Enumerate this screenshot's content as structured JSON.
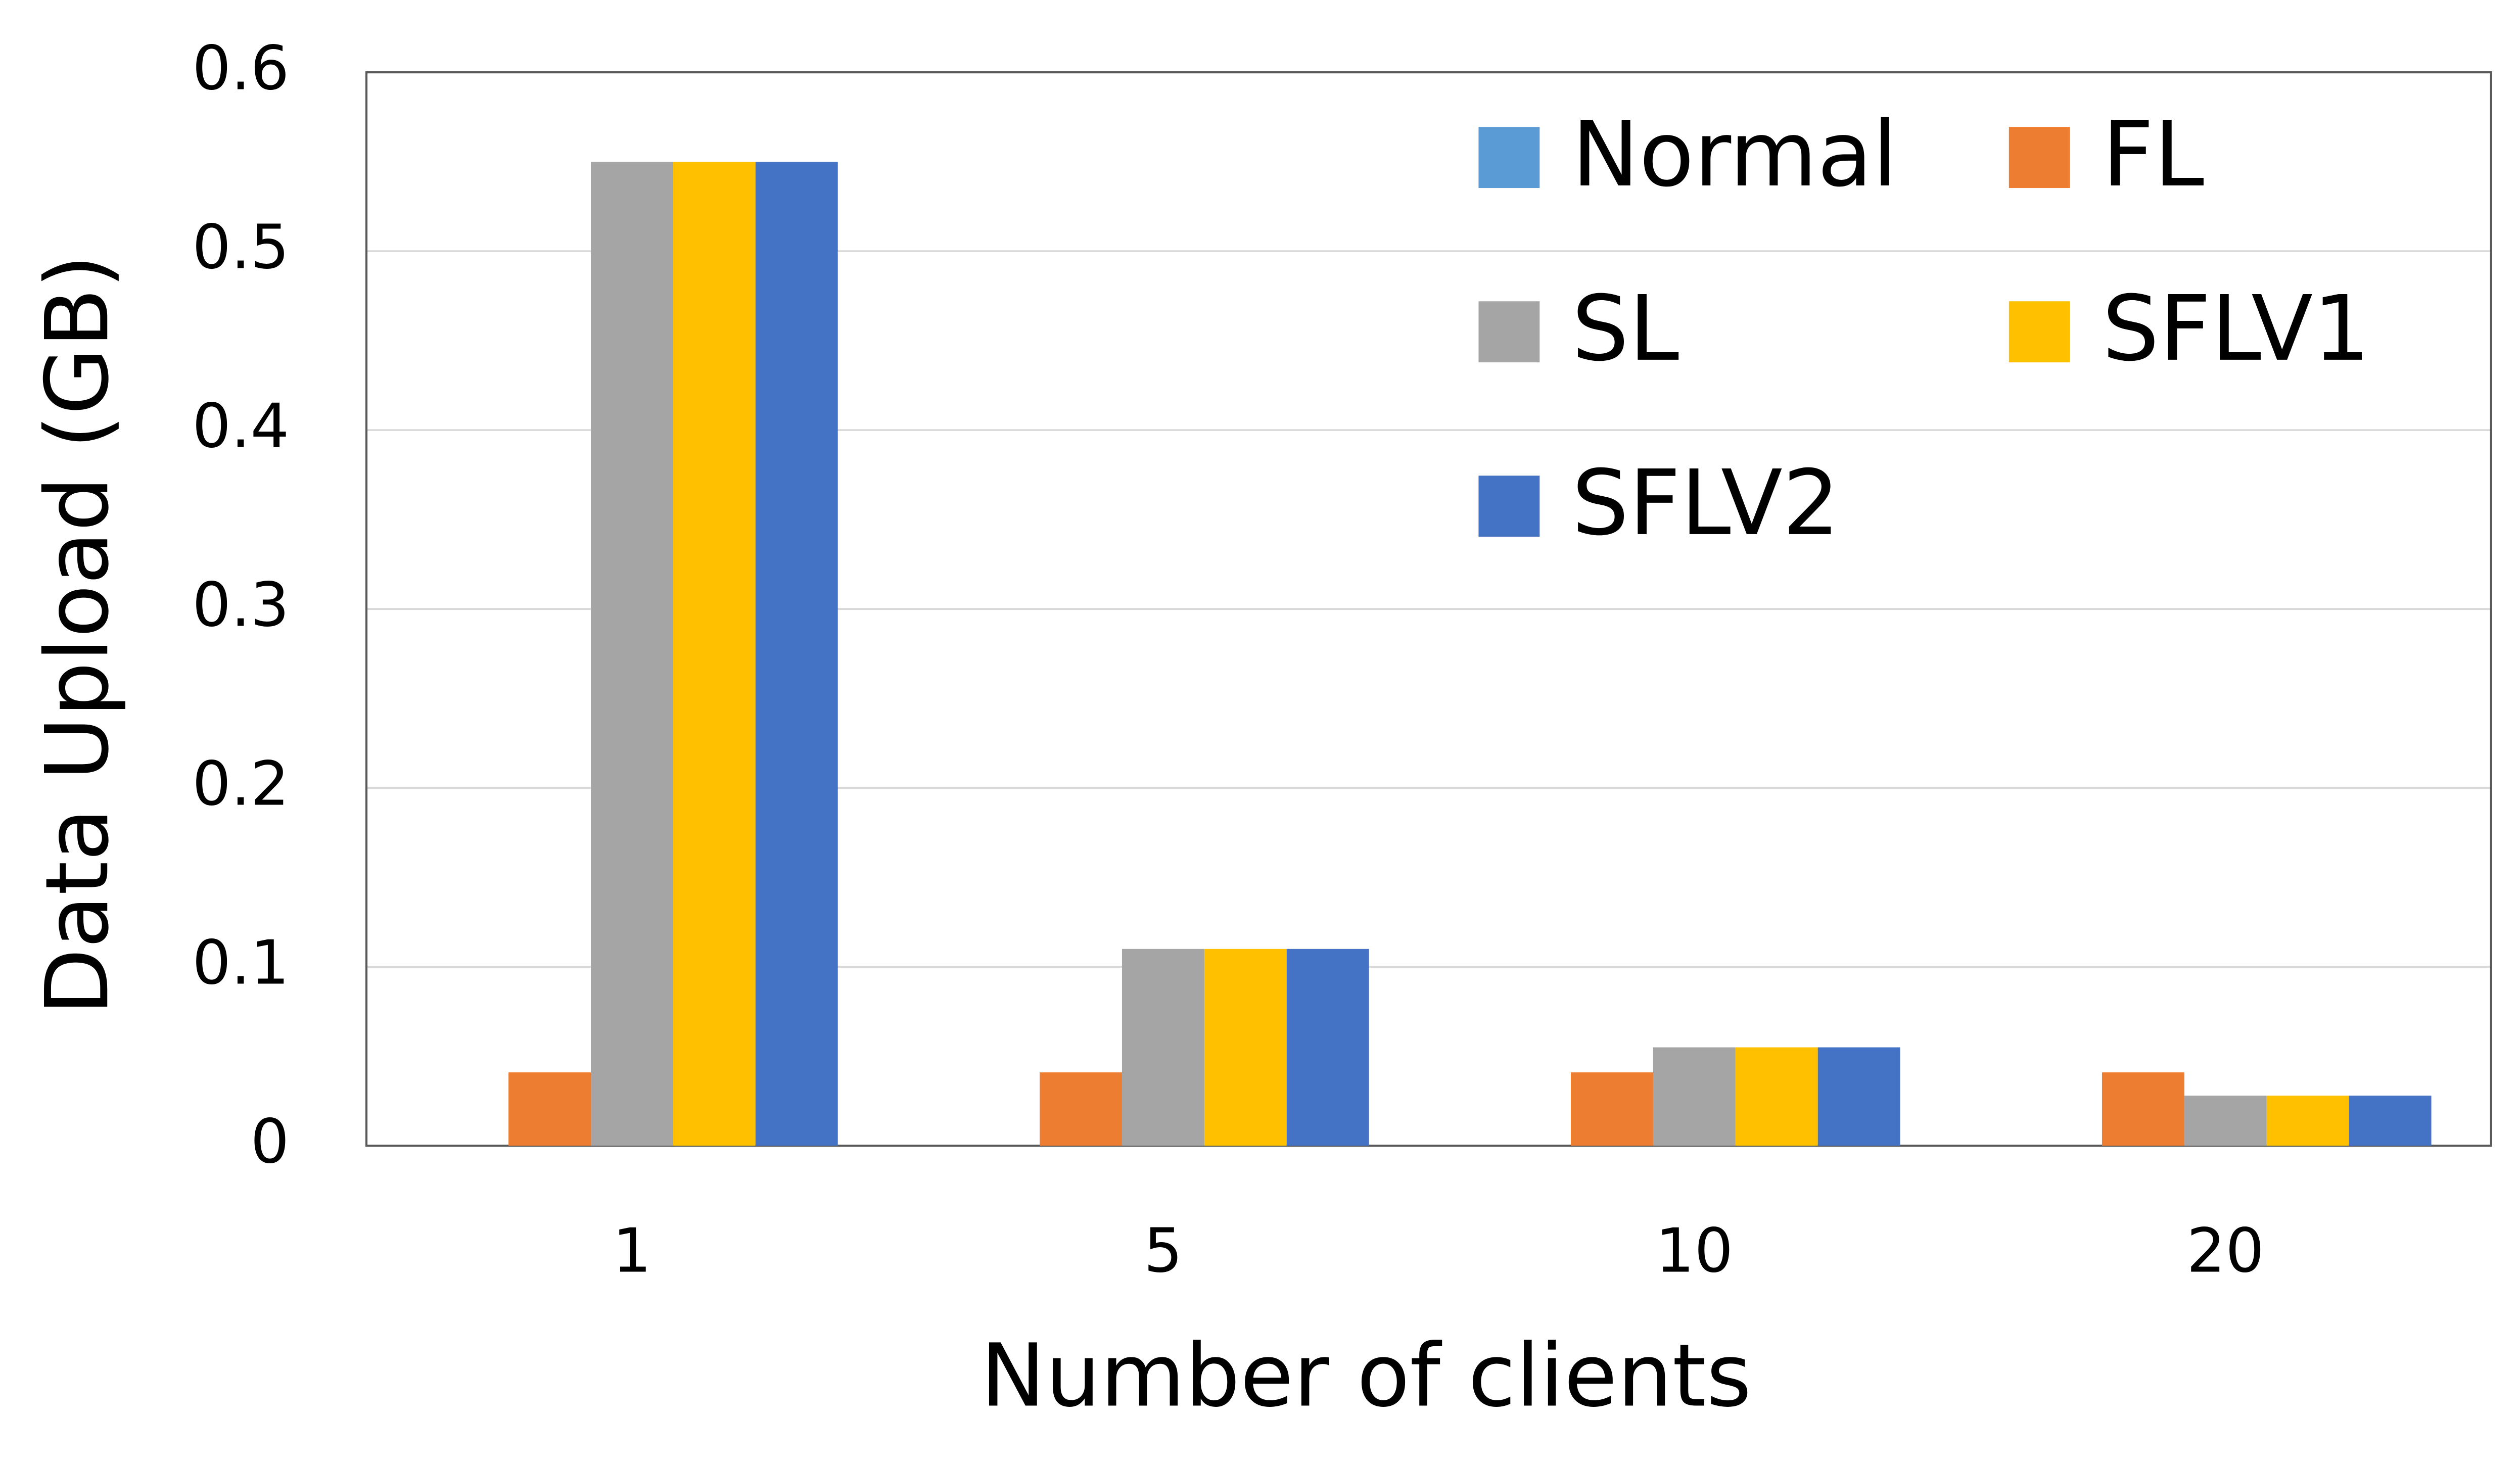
{
  "chart_data": {
    "type": "bar",
    "x_label": "Number of clients",
    "y_label": "Data Upload (GB)",
    "categories": [
      "1",
      "5",
      "10",
      "20"
    ],
    "series": [
      {
        "name": "Normal",
        "color": "#5b9bd5",
        "values": [
          0,
          0,
          0,
          0
        ]
      },
      {
        "name": "FL",
        "color": "#ed7d31",
        "values": [
          0.041,
          0.041,
          0.041,
          0.041
        ]
      },
      {
        "name": "SL",
        "color": "#a5a5a5",
        "values": [
          0.55,
          0.11,
          0.055,
          0.028
        ]
      },
      {
        "name": "SFLV1",
        "color": "#ffc000",
        "values": [
          0.55,
          0.11,
          0.055,
          0.028
        ]
      },
      {
        "name": "SFLV2",
        "color": "#4472c4",
        "values": [
          0.55,
          0.11,
          0.055,
          0.028
        ]
      }
    ],
    "ylim": [
      0,
      0.6
    ],
    "yticks": [
      0,
      0.1,
      0.2,
      0.3,
      0.4,
      0.5,
      0.6
    ],
    "grid": true,
    "legend_position": "upper right"
  }
}
